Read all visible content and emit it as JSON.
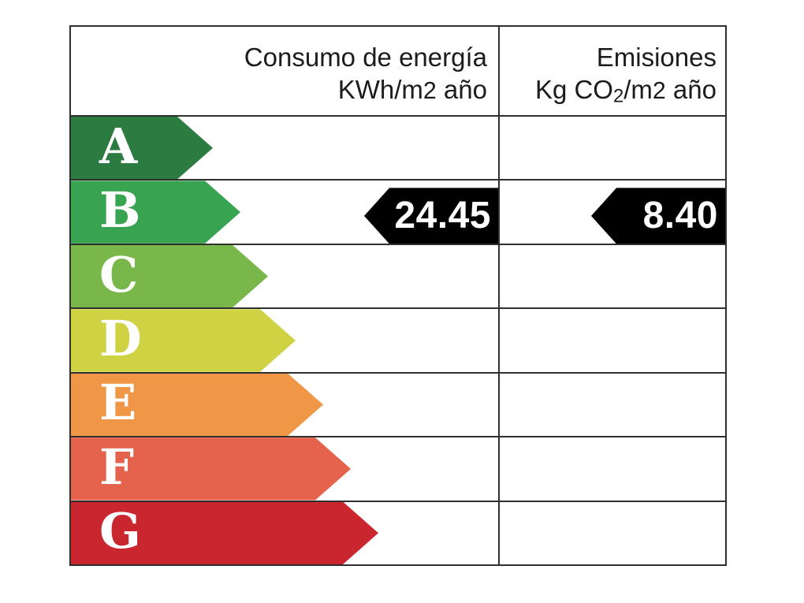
{
  "label": {
    "header": {
      "consumption_line1": "Consumo de energía",
      "consumption_line2_parts": [
        {
          "t": "KWh/m"
        },
        {
          "t": "2",
          "s": "num"
        },
        {
          "t": " año"
        }
      ],
      "emissions_line1": "Emisiones",
      "emissions_line2_parts": [
        {
          "t": "Kg CO"
        },
        {
          "t": "2",
          "s": "sub"
        },
        {
          "t": "/m"
        },
        {
          "t": "2",
          "s": "num"
        },
        {
          "t": " año"
        }
      ]
    },
    "ratings": [
      {
        "letter": "A",
        "color": "#2c7b41",
        "arrow_width": 180
      },
      {
        "letter": "B",
        "color": "#38a452",
        "arrow_width": 215
      },
      {
        "letter": "C",
        "color": "#79b74a",
        "arrow_width": 250
      },
      {
        "letter": "D",
        "color": "#cfd343",
        "arrow_width": 285
      },
      {
        "letter": "E",
        "color": "#f09647",
        "arrow_width": 320
      },
      {
        "letter": "F",
        "color": "#e5624d",
        "arrow_width": 355
      },
      {
        "letter": "G",
        "color": "#c92630",
        "arrow_width": 390
      }
    ],
    "indicator": {
      "rating": "B",
      "consumption_value": "24.45",
      "emissions_value": "8.40",
      "arrow_color": "#000000",
      "value_text_color": "#ffffff"
    },
    "border_color": "#2f2f2f"
  },
  "chart_data": {
    "type": "table",
    "columns": [
      "Consumo de energía KWh/m2 año",
      "Emisiones Kg CO2/m2 año"
    ],
    "scale": [
      "A",
      "B",
      "C",
      "D",
      "E",
      "F",
      "G"
    ],
    "scale_colors": [
      "#2c7b41",
      "#38a452",
      "#79b74a",
      "#cfd343",
      "#f09647",
      "#e5624d",
      "#c92630"
    ],
    "rating": "B",
    "values": {
      "consumo_kwh_m2_ano": 24.45,
      "emisiones_kg_co2_m2_ano": 8.4
    }
  }
}
